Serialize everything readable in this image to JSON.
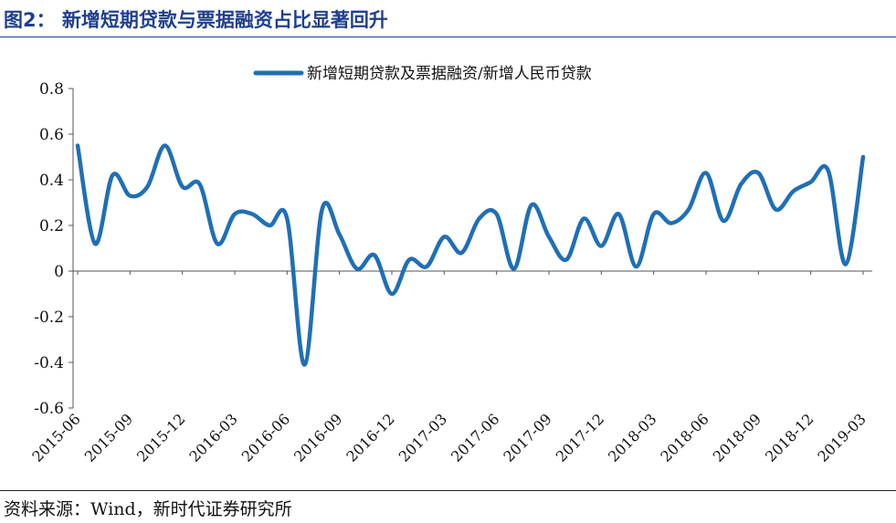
{
  "figure": {
    "title": "图2：  新增短期贷款与票据融资占比显著回升",
    "source": "资料来源：Wind，新时代证券研究所"
  },
  "chart_data": {
    "type": "line",
    "title": "",
    "xlabel": "",
    "ylabel": "",
    "ylim": [
      -0.6,
      0.8
    ],
    "yticks": [
      "0.8",
      "0.6",
      "0.4",
      "0.2",
      "0",
      "-0.2",
      "-0.4",
      "-0.6"
    ],
    "legend_position": "top-center",
    "grid": false,
    "line_color": "#1f6fb6",
    "x_tick_labels": [
      "2015-06",
      "2015-09",
      "2015-12",
      "2016-03",
      "2016-06",
      "2016-09",
      "2016-12",
      "2017-03",
      "2017-06",
      "2017-09",
      "2017-12",
      "2018-03",
      "2018-06",
      "2018-09",
      "2018-12",
      "2019-03"
    ],
    "x": [
      "2015-06",
      "2015-07",
      "2015-08",
      "2015-09",
      "2015-10",
      "2015-11",
      "2015-12",
      "2016-01",
      "2016-02",
      "2016-03",
      "2016-04",
      "2016-05",
      "2016-06",
      "2016-07",
      "2016-08",
      "2016-09",
      "2016-10",
      "2016-11",
      "2016-12",
      "2017-01",
      "2017-02",
      "2017-03",
      "2017-04",
      "2017-05",
      "2017-06",
      "2017-07",
      "2017-08",
      "2017-09",
      "2017-10",
      "2017-11",
      "2017-12",
      "2018-01",
      "2018-02",
      "2018-03",
      "2018-04",
      "2018-05",
      "2018-06",
      "2018-07",
      "2018-08",
      "2018-09",
      "2018-10",
      "2018-11",
      "2018-12",
      "2019-01",
      "2019-02",
      "2019-03"
    ],
    "series": [
      {
        "name": "新增短期贷款及票据融资/新增人民币贷款",
        "values": [
          0.55,
          0.12,
          0.42,
          0.33,
          0.37,
          0.55,
          0.37,
          0.38,
          0.12,
          0.25,
          0.25,
          0.2,
          0.23,
          -0.41,
          0.27,
          0.16,
          0.01,
          0.07,
          -0.1,
          0.05,
          0.02,
          0.15,
          0.08,
          0.23,
          0.25,
          0.01,
          0.29,
          0.15,
          0.05,
          0.23,
          0.11,
          0.25,
          0.02,
          0.25,
          0.21,
          0.27,
          0.43,
          0.22,
          0.38,
          0.43,
          0.27,
          0.35,
          0.39,
          0.44,
          0.03,
          0.5
        ]
      }
    ]
  }
}
